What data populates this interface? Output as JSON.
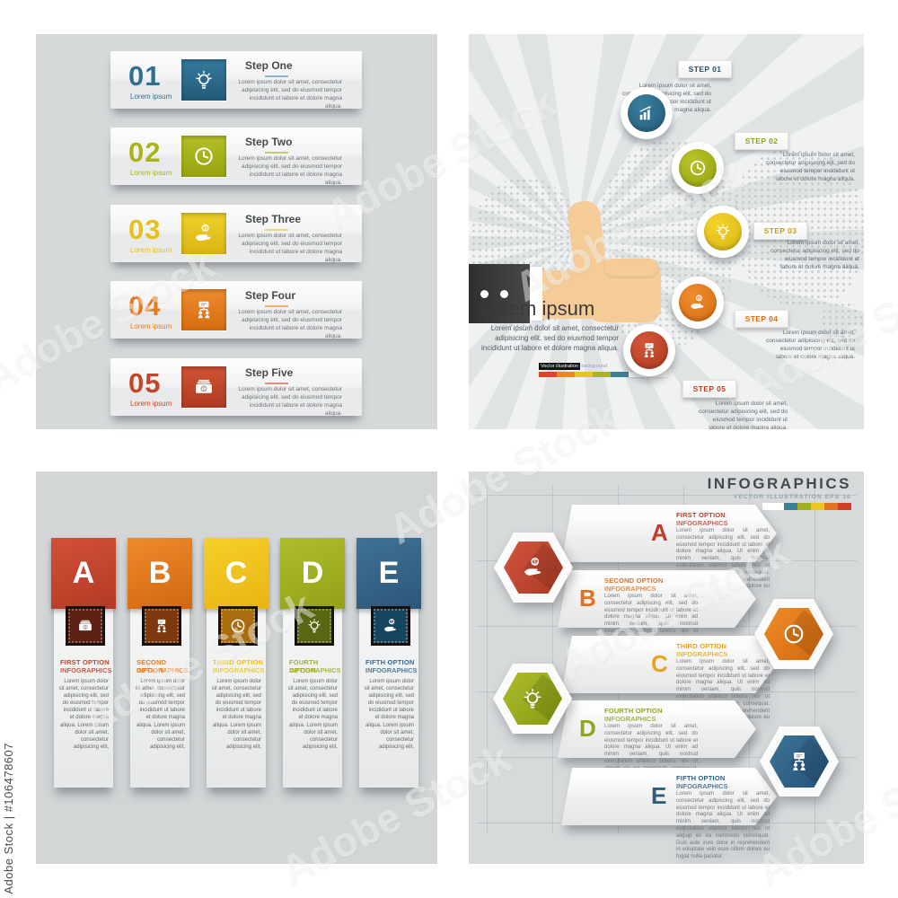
{
  "watermark": {
    "brand": "Adobe Stock",
    "vertical": "Adobe Stock | #106478607"
  },
  "shared": {
    "step_body": "Lorem ipsum dolor sit amet, consectetur adipisicing elit, sed do eiusmod tempor incididunt ut labore et dolore magna aliqua.",
    "tab_body": "Lorem ipsum dolor sit amet, consectetur adipisicing elit, sed do eiusmod tempor incididunt ut labore et dolore magna aliqua. Lorem ipsum dolor sit amet, consectetur adipisicing elit,",
    "arrow_body": "Lorem ipsum dolor sit amet, consectetur adipiscing elit, sed do eiusmod tempor incididunt ut labore et dolore magna aliqua. Ut enim ad minim veniam, quis nostrud exercitation ullamco laboris nisi ut aliquip ex ea commodo consequat. Duis aute irure dolor in reprehenderit in voluptate velit esse cillum dolore eu fugiat nulla pariatur."
  },
  "steps_panel": {
    "items": [
      {
        "number": "01",
        "label": "Lorem ipsum",
        "title": "Step One",
        "icon": "lightbulb-icon",
        "color": "#2f6f8f"
      },
      {
        "number": "02",
        "label": "Lorem ipsum",
        "title": "Step Two",
        "icon": "clock-icon",
        "color": "#a9b41d"
      },
      {
        "number": "03",
        "label": "Lorem ipsum",
        "title": "Step Three",
        "icon": "coin-hand-icon",
        "color": "#e5c01b"
      },
      {
        "number": "04",
        "label": "Lorem ipsum",
        "title": "Step Four",
        "icon": "orgchart-icon",
        "color": "#e37a1e"
      },
      {
        "number": "05",
        "label": "Lorem ipsum",
        "title": "Step Five",
        "icon": "banknotes-icon",
        "color": "#c2462b"
      }
    ]
  },
  "thumb_panel": {
    "headline": "Lorem ipsum",
    "caption_highlight": "Vector illustration",
    "caption_rest": "background",
    "swatches": [
      "#d9472b",
      "#e98524",
      "#e7c51f",
      "#a8b421",
      "#3f7f92",
      "#ffffff"
    ],
    "steps": [
      {
        "label": "STEP 01",
        "icon": "bar-chart-icon",
        "color": "#2d6c8b"
      },
      {
        "label": "STEP 02",
        "icon": "clock-icon",
        "color": "#a9b41d"
      },
      {
        "label": "STEP 03",
        "icon": "lightbulb-icon",
        "color": "#ecc51d"
      },
      {
        "label": "STEP 04",
        "icon": "coin-hand-icon",
        "color": "#e37a1e"
      },
      {
        "label": "STEP 05",
        "icon": "orgchart-icon",
        "color": "#c2462b"
      }
    ]
  },
  "tabs_panel": {
    "items": [
      {
        "letter": "A",
        "title": "FIRST OPTION",
        "subtitle": "INFOGRAPHICS",
        "icon": "banknotes-icon",
        "color": "#c5432d"
      },
      {
        "letter": "B",
        "title": "SECOND OPTION",
        "subtitle": "INFOGRAPHICS",
        "icon": "orgchart-icon",
        "color": "#e67e22"
      },
      {
        "letter": "C",
        "title": "THIRD OPTION",
        "subtitle": "INFOGRAPHICS",
        "icon": "clock-icon",
        "color": "#f0c51c"
      },
      {
        "letter": "D",
        "title": "FOURTH OPTION",
        "subtitle": "INFOGRAPHICS",
        "icon": "lightbulb-icon",
        "color": "#a2b023"
      },
      {
        "letter": "E",
        "title": "FIFTH OPTION",
        "subtitle": "INFOGRAPHICS",
        "icon": "coin-hand-icon",
        "color": "#38688c"
      }
    ]
  },
  "arrows_panel": {
    "title": "INFOGRAPHICS",
    "subtitle": "VECTOR ILLUSTRATION EPS 10",
    "swatches": [
      "#ffffff",
      "#3d7f93",
      "#a4b021",
      "#ecc620",
      "#e2751d",
      "#cf3f27"
    ],
    "items": [
      {
        "letter": "A",
        "title": "FIRST OPTION",
        "subtitle": "INFOGRAPHICS",
        "color": "#bf3d2b"
      },
      {
        "letter": "B",
        "title": "SECOND OPTION",
        "subtitle": "INFOGRAPHICS",
        "color": "#e2711d"
      },
      {
        "letter": "C",
        "title": "THIRD OPTION",
        "subtitle": "INFOGRAPHICS",
        "color": "#e8a41d"
      },
      {
        "letter": "D",
        "title": "FOURTH OPTION",
        "subtitle": "INFOGRAPHICS",
        "color": "#93a31b"
      },
      {
        "letter": "E",
        "title": "FIFTH OPTION",
        "subtitle": "INFOGRAPHICS",
        "color": "#2d5e7e"
      }
    ],
    "hexagons": [
      {
        "icon": "coin-hand-icon",
        "color": "#c24530"
      },
      {
        "icon": "clock-icon",
        "color": "#e67917"
      },
      {
        "icon": "lightbulb-icon",
        "color": "#9caf1d"
      },
      {
        "icon": "orgchart-icon",
        "color": "#2f6285"
      }
    ]
  }
}
